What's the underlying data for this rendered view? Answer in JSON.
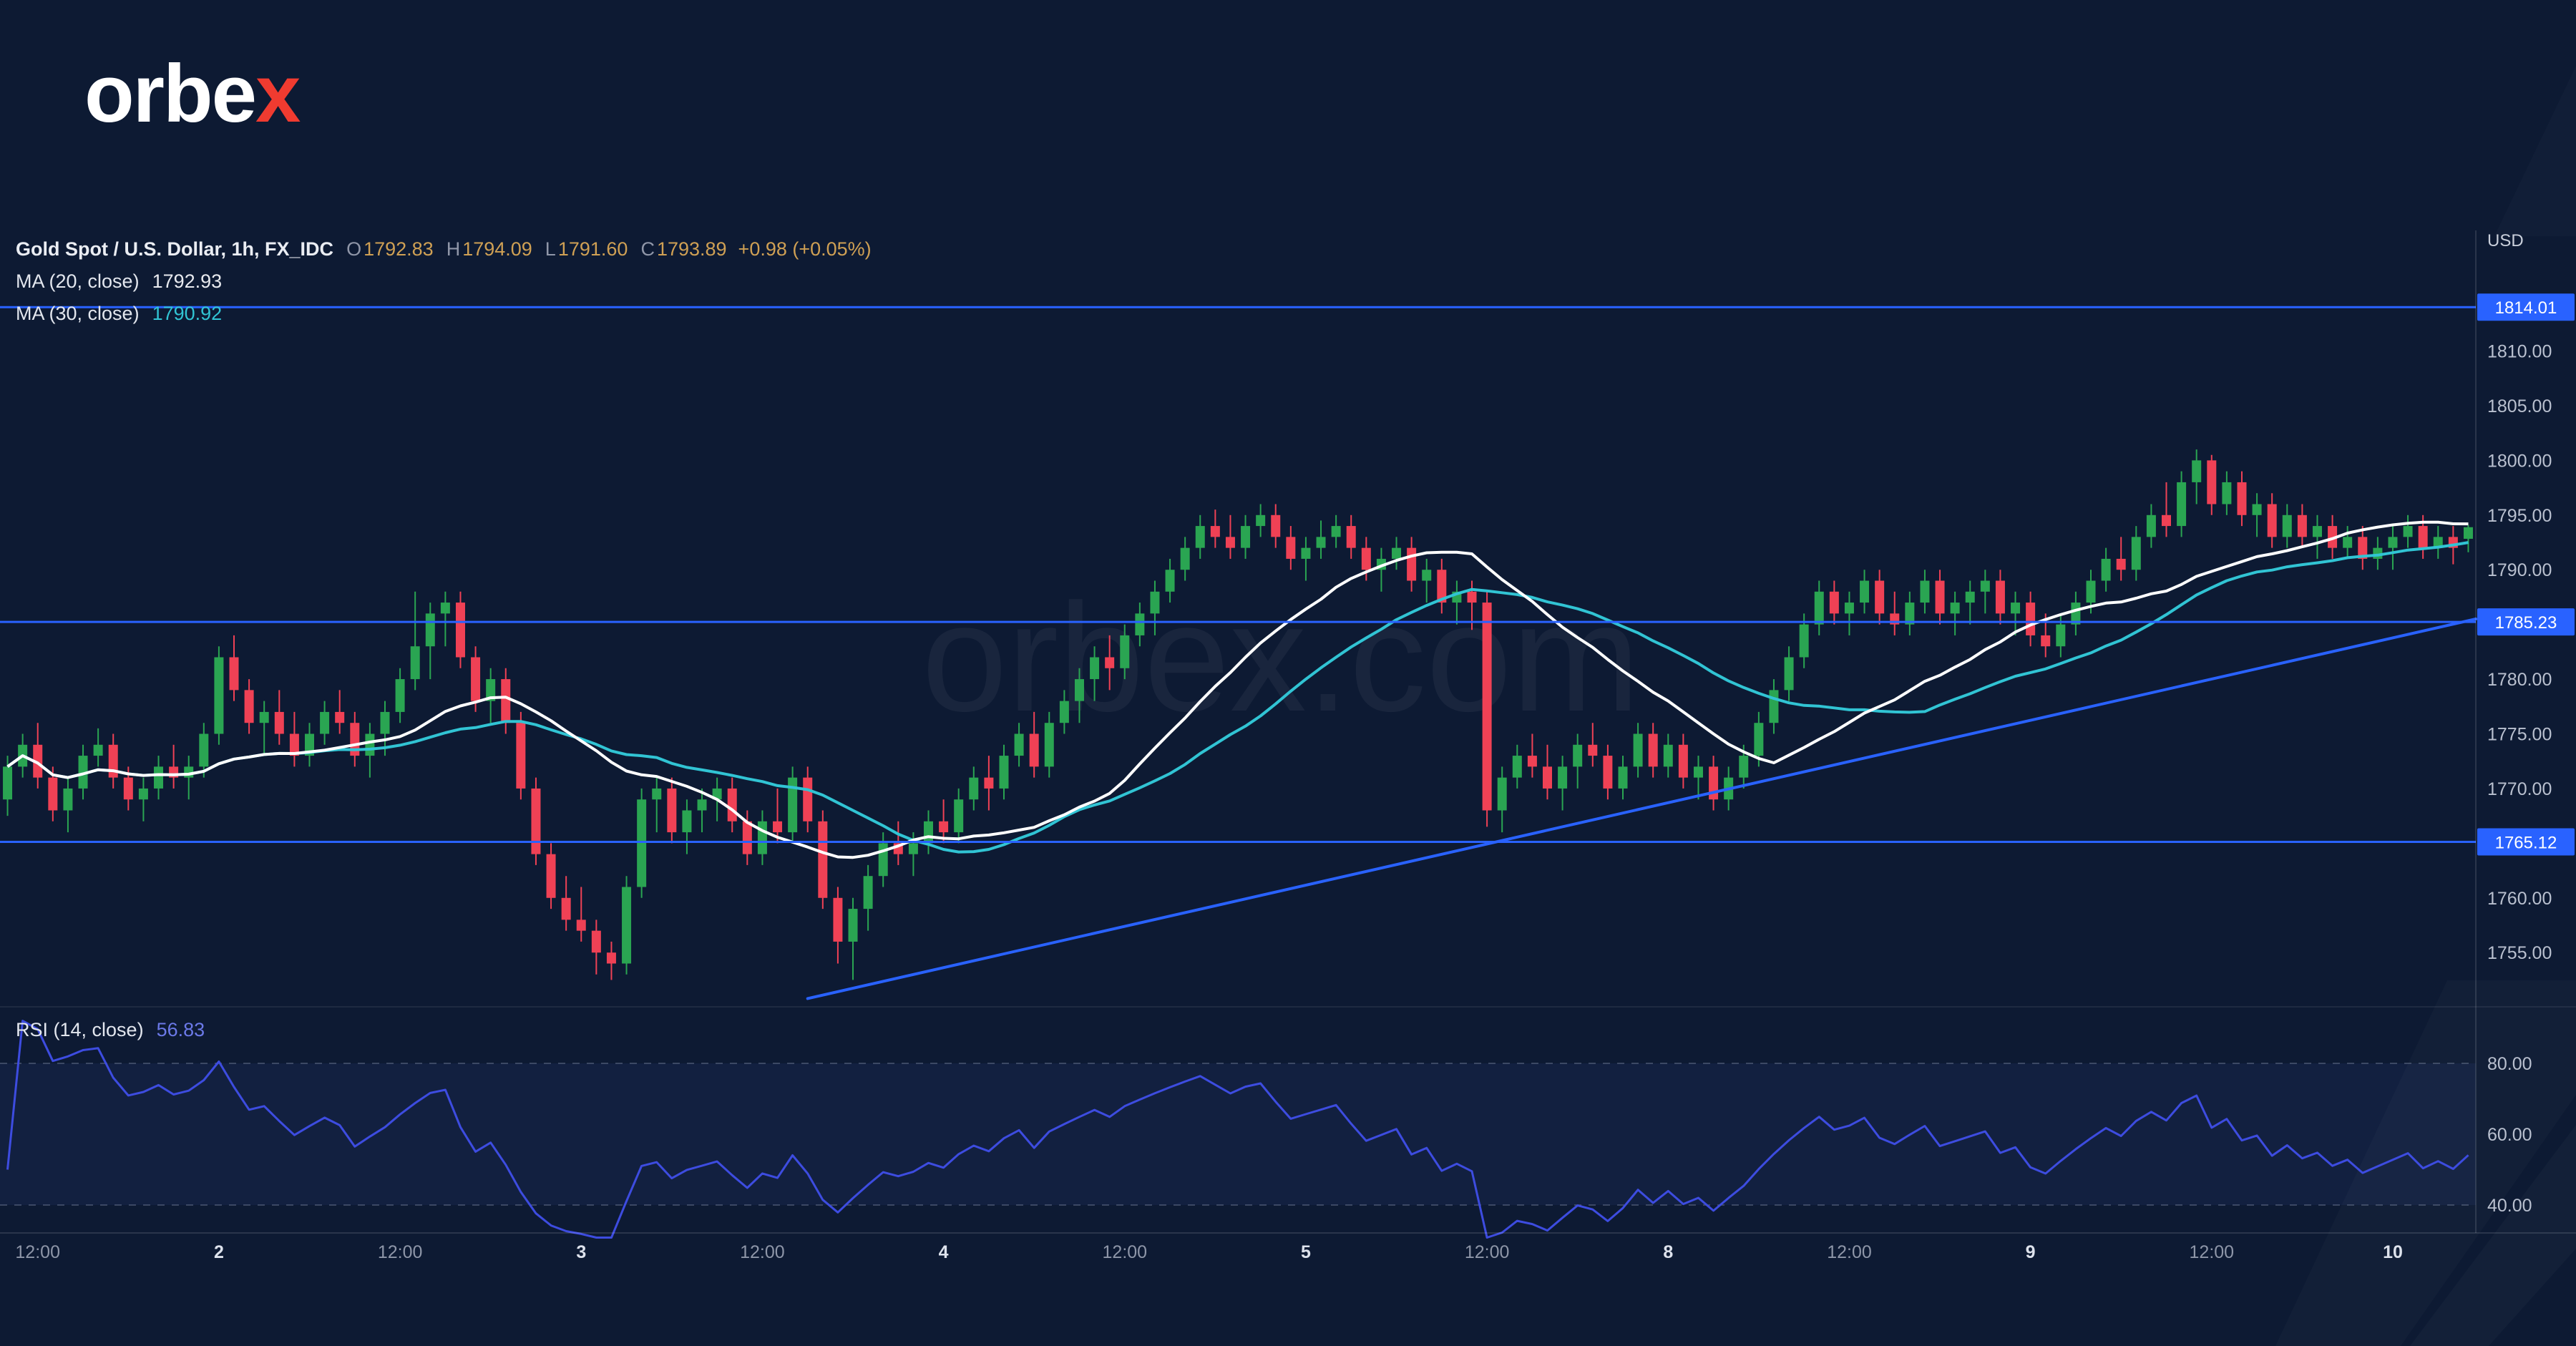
{
  "logo": {
    "prefix": "orbe",
    "accent": "x"
  },
  "watermark": {
    "text": "orbex.com"
  },
  "legend": {
    "title": "Gold Spot / U.S. Dollar, 1h, FX_IDC",
    "ohlc": {
      "o_label": "O",
      "o": "1792.83",
      "h_label": "H",
      "h": "1794.09",
      "l_label": "L",
      "l": "1791.60",
      "c_label": "C",
      "c": "1793.89",
      "change": "+0.98 (+0.05%)"
    },
    "ma20": {
      "label": "MA (20, close)",
      "value": "1792.93"
    },
    "ma30": {
      "label": "MA (30, close)",
      "value": "1790.92"
    },
    "rsi": {
      "label": "RSI (14, close)",
      "value": "56.83"
    }
  },
  "colors": {
    "background": "#0d1a33",
    "bullish": "#2aa552",
    "bearish": "#ef4155",
    "ma20": "#ffffff",
    "ma30": "#31c4d4",
    "rsi_line": "#3d4ce0",
    "rsi_band": "rgba(82,96,200,0.09)",
    "level_blue": "#2962ff",
    "legend_values": "#cfa054",
    "logo_red": "#f03b30"
  },
  "chart_data": {
    "type": "candlestick",
    "title": "Gold Spot / U.S. Dollar, 1h, FX_IDC",
    "y_axis": {
      "currency": "USD",
      "range": [
        1750.5,
        1820.5
      ],
      "ticks": [
        {
          "v": 1810,
          "label": "1810.00"
        },
        {
          "v": 1805,
          "label": "1805.00"
        },
        {
          "v": 1800,
          "label": "1800.00"
        },
        {
          "v": 1795,
          "label": "1795.00"
        },
        {
          "v": 1790,
          "label": "1790.00"
        },
        {
          "v": 1780,
          "label": "1780.00"
        },
        {
          "v": 1775,
          "label": "1775.00"
        },
        {
          "v": 1770,
          "label": "1770.00"
        },
        {
          "v": 1760,
          "label": "1760.00"
        },
        {
          "v": 1755,
          "label": "1755.00"
        }
      ]
    },
    "x_axis": {
      "labels": [
        {
          "text": "12:00",
          "idx": 2,
          "major": false
        },
        {
          "text": "2",
          "idx": 14,
          "major": true
        },
        {
          "text": "12:00",
          "idx": 26,
          "major": false
        },
        {
          "text": "3",
          "idx": 38,
          "major": true
        },
        {
          "text": "12:00",
          "idx": 50,
          "major": false
        },
        {
          "text": "4",
          "idx": 62,
          "major": true
        },
        {
          "text": "12:00",
          "idx": 74,
          "major": false
        },
        {
          "text": "5",
          "idx": 86,
          "major": true
        },
        {
          "text": "12:00",
          "idx": 98,
          "major": false
        },
        {
          "text": "8",
          "idx": 110,
          "major": true
        },
        {
          "text": "12:00",
          "idx": 122,
          "major": false
        },
        {
          "text": "9",
          "idx": 134,
          "major": true
        },
        {
          "text": "12:00",
          "idx": 146,
          "major": false
        },
        {
          "text": "10",
          "idx": 158,
          "major": true
        }
      ]
    },
    "levels": [
      {
        "price": 1814.01,
        "label": "1814.01"
      },
      {
        "price": 1785.23,
        "label": "1785.23"
      },
      {
        "price": 1765.12,
        "label": "1765.12"
      }
    ],
    "trendline": {
      "from_index": 53,
      "from_price": 1750.8,
      "to_index": 164,
      "to_price": 1785.5
    },
    "overlays": [
      {
        "name": "MA (20, close)",
        "type": "sma",
        "period": 20,
        "color": "#ffffff",
        "last_value": 1792.93
      },
      {
        "name": "MA (30, close)",
        "type": "sma",
        "period": 30,
        "color": "#31c4d4",
        "last_value": 1790.92
      }
    ],
    "rsi_panel": {
      "name": "RSI (14, close)",
      "period": 14,
      "last_value": 56.83,
      "ticks": [
        {
          "v": 80,
          "label": "80.00"
        },
        {
          "v": 60,
          "label": "60.00"
        },
        {
          "v": 40,
          "label": "40.00"
        }
      ],
      "band_lines": [
        80,
        40
      ]
    },
    "candles": [
      [
        1769,
        1773,
        1767.5,
        1772
      ],
      [
        1772,
        1775,
        1771,
        1774
      ],
      [
        1774,
        1776,
        1770,
        1771
      ],
      [
        1771,
        1772,
        1767,
        1768
      ],
      [
        1768,
        1771,
        1766,
        1770
      ],
      [
        1770,
        1774,
        1769,
        1773
      ],
      [
        1773,
        1775.5,
        1772,
        1774
      ],
      [
        1774,
        1775,
        1770,
        1771
      ],
      [
        1771,
        1772,
        1768,
        1769
      ],
      [
        1769,
        1771,
        1767,
        1770
      ],
      [
        1770,
        1773,
        1769,
        1772
      ],
      [
        1772,
        1774,
        1770,
        1771
      ],
      [
        1771,
        1773,
        1769,
        1772
      ],
      [
        1772,
        1776,
        1771,
        1775
      ],
      [
        1775,
        1783,
        1774,
        1782
      ],
      [
        1782,
        1784,
        1778,
        1779
      ],
      [
        1779,
        1780,
        1775,
        1776
      ],
      [
        1776,
        1778,
        1773,
        1777
      ],
      [
        1777,
        1779,
        1774,
        1775
      ],
      [
        1775,
        1777,
        1772,
        1773
      ],
      [
        1773,
        1776,
        1772,
        1775
      ],
      [
        1775,
        1778,
        1774,
        1777
      ],
      [
        1777,
        1779,
        1775,
        1776
      ],
      [
        1776,
        1777,
        1772,
        1773
      ],
      [
        1773,
        1776,
        1771,
        1775
      ],
      [
        1775,
        1778,
        1773,
        1777
      ],
      [
        1777,
        1781,
        1776,
        1780
      ],
      [
        1780,
        1788,
        1779,
        1783
      ],
      [
        1783,
        1787,
        1780,
        1786
      ],
      [
        1786,
        1788,
        1783,
        1787
      ],
      [
        1787,
        1788,
        1781,
        1782
      ],
      [
        1782,
        1783,
        1777,
        1778
      ],
      [
        1778,
        1781,
        1776,
        1780
      ],
      [
        1780,
        1781,
        1775,
        1776
      ],
      [
        1776,
        1777,
        1769,
        1770
      ],
      [
        1770,
        1771,
        1763,
        1764
      ],
      [
        1764,
        1765,
        1759,
        1760
      ],
      [
        1760,
        1762,
        1757,
        1758
      ],
      [
        1758,
        1761,
        1756,
        1757
      ],
      [
        1757,
        1758,
        1753,
        1755
      ],
      [
        1755,
        1756,
        1752.5,
        1754
      ],
      [
        1754,
        1762,
        1753,
        1761
      ],
      [
        1761,
        1770,
        1760,
        1769
      ],
      [
        1769,
        1771,
        1766,
        1770
      ],
      [
        1770,
        1771,
        1765,
        1766
      ],
      [
        1766,
        1769,
        1764,
        1768
      ],
      [
        1768,
        1770,
        1766,
        1769
      ],
      [
        1769,
        1771,
        1767,
        1770
      ],
      [
        1770,
        1771,
        1766,
        1767
      ],
      [
        1767,
        1768,
        1763,
        1764
      ],
      [
        1764,
        1768,
        1763,
        1767
      ],
      [
        1767,
        1770,
        1765,
        1766
      ],
      [
        1766,
        1772,
        1765,
        1771
      ],
      [
        1771,
        1772,
        1766,
        1767
      ],
      [
        1767,
        1768,
        1759,
        1760
      ],
      [
        1760,
        1761,
        1754,
        1756
      ],
      [
        1756,
        1760,
        1752.5,
        1759
      ],
      [
        1759,
        1763,
        1757,
        1762
      ],
      [
        1762,
        1766,
        1761,
        1765
      ],
      [
        1765,
        1767,
        1763,
        1764
      ],
      [
        1764,
        1766,
        1762,
        1765
      ],
      [
        1765,
        1768,
        1764,
        1767
      ],
      [
        1767,
        1769,
        1765,
        1766
      ],
      [
        1766,
        1770,
        1765,
        1769
      ],
      [
        1769,
        1772,
        1768,
        1771
      ],
      [
        1771,
        1773,
        1768,
        1770
      ],
      [
        1770,
        1774,
        1769,
        1773
      ],
      [
        1773,
        1776,
        1772,
        1775
      ],
      [
        1775,
        1777,
        1771,
        1772
      ],
      [
        1772,
        1777,
        1771,
        1776
      ],
      [
        1776,
        1779,
        1775,
        1778
      ],
      [
        1778,
        1781,
        1776,
        1780
      ],
      [
        1780,
        1783,
        1778,
        1782
      ],
      [
        1782,
        1784,
        1779,
        1781
      ],
      [
        1781,
        1785,
        1780,
        1784
      ],
      [
        1784,
        1787,
        1783,
        1786
      ],
      [
        1786,
        1789,
        1784,
        1788
      ],
      [
        1788,
        1791,
        1787,
        1790
      ],
      [
        1790,
        1793,
        1789,
        1792
      ],
      [
        1792,
        1795,
        1791,
        1794
      ],
      [
        1794,
        1795.5,
        1792,
        1793
      ],
      [
        1793,
        1795,
        1791,
        1792
      ],
      [
        1792,
        1795,
        1791,
        1794
      ],
      [
        1794,
        1796,
        1793,
        1795
      ],
      [
        1795,
        1796,
        1792,
        1793
      ],
      [
        1793,
        1794,
        1790,
        1791
      ],
      [
        1791,
        1793,
        1789,
        1792
      ],
      [
        1792,
        1794.5,
        1791,
        1793
      ],
      [
        1793,
        1795,
        1792,
        1794
      ],
      [
        1794,
        1795,
        1791,
        1792
      ],
      [
        1792,
        1793,
        1789,
        1790
      ],
      [
        1790,
        1792,
        1788,
        1791
      ],
      [
        1791,
        1793,
        1790,
        1792
      ],
      [
        1792,
        1793,
        1788,
        1789
      ],
      [
        1789,
        1791,
        1787,
        1790
      ],
      [
        1790,
        1791,
        1786,
        1787
      ],
      [
        1787,
        1789,
        1785,
        1788
      ],
      [
        1788,
        1789,
        1784.5,
        1787
      ],
      [
        1787,
        1788,
        1766.5,
        1768
      ],
      [
        1768,
        1772,
        1766,
        1771
      ],
      [
        1771,
        1774,
        1770,
        1773
      ],
      [
        1773,
        1775,
        1771,
        1772
      ],
      [
        1772,
        1774,
        1769,
        1770
      ],
      [
        1770,
        1773,
        1768,
        1772
      ],
      [
        1772,
        1775,
        1770,
        1774
      ],
      [
        1774,
        1776,
        1772,
        1773
      ],
      [
        1773,
        1774,
        1769,
        1770
      ],
      [
        1770,
        1773,
        1769,
        1772
      ],
      [
        1772,
        1776,
        1771,
        1775
      ],
      [
        1775,
        1776,
        1771,
        1772
      ],
      [
        1772,
        1775,
        1771,
        1774
      ],
      [
        1774,
        1775,
        1770,
        1771
      ],
      [
        1771,
        1773,
        1769,
        1772
      ],
      [
        1772,
        1773,
        1768,
        1769
      ],
      [
        1769,
        1772,
        1768,
        1771
      ],
      [
        1771,
        1774,
        1770,
        1773
      ],
      [
        1773,
        1777,
        1772,
        1776
      ],
      [
        1776,
        1780,
        1775,
        1779
      ],
      [
        1779,
        1783,
        1778,
        1782
      ],
      [
        1782,
        1786,
        1781,
        1785
      ],
      [
        1785,
        1789,
        1784,
        1788
      ],
      [
        1788,
        1789,
        1785,
        1786
      ],
      [
        1786,
        1788,
        1784,
        1787
      ],
      [
        1787,
        1790,
        1786,
        1789
      ],
      [
        1789,
        1790,
        1785,
        1786
      ],
      [
        1786,
        1788,
        1784,
        1785
      ],
      [
        1785,
        1788,
        1784,
        1787
      ],
      [
        1787,
        1790,
        1786,
        1789
      ],
      [
        1789,
        1790,
        1785,
        1786
      ],
      [
        1786,
        1788,
        1784,
        1787
      ],
      [
        1787,
        1789,
        1785,
        1788
      ],
      [
        1788,
        1790,
        1786,
        1789
      ],
      [
        1789,
        1790,
        1785,
        1786
      ],
      [
        1786,
        1788,
        1784,
        1787
      ],
      [
        1787,
        1788,
        1783,
        1784
      ],
      [
        1784,
        1786,
        1782,
        1783
      ],
      [
        1783,
        1786,
        1782,
        1785
      ],
      [
        1785,
        1788,
        1784,
        1787
      ],
      [
        1787,
        1790,
        1786,
        1789
      ],
      [
        1789,
        1792,
        1788,
        1791
      ],
      [
        1791,
        1793,
        1789,
        1790
      ],
      [
        1790,
        1794,
        1789,
        1793
      ],
      [
        1793,
        1796,
        1792,
        1795
      ],
      [
        1795,
        1798,
        1793,
        1794
      ],
      [
        1794,
        1799,
        1793,
        1798
      ],
      [
        1798,
        1801,
        1796,
        1800
      ],
      [
        1800,
        1800.5,
        1795,
        1796
      ],
      [
        1796,
        1799,
        1795,
        1798
      ],
      [
        1798,
        1799,
        1794,
        1795
      ],
      [
        1795,
        1797,
        1793,
        1796
      ],
      [
        1796,
        1797,
        1792,
        1793
      ],
      [
        1793,
        1796,
        1792,
        1795
      ],
      [
        1795,
        1796,
        1792,
        1793
      ],
      [
        1793,
        1795,
        1791,
        1794
      ],
      [
        1794,
        1795,
        1791,
        1792
      ],
      [
        1792,
        1794,
        1791,
        1793
      ],
      [
        1793,
        1794,
        1790,
        1791
      ],
      [
        1791,
        1793,
        1790,
        1792
      ],
      [
        1792,
        1794,
        1790,
        1793
      ],
      [
        1793,
        1795,
        1792,
        1794
      ],
      [
        1794,
        1795,
        1791,
        1792
      ],
      [
        1792,
        1794,
        1791,
        1793
      ],
      [
        1793,
        1794,
        1790.5,
        1792
      ],
      [
        1792.83,
        1794.09,
        1791.6,
        1793.89
      ]
    ]
  }
}
